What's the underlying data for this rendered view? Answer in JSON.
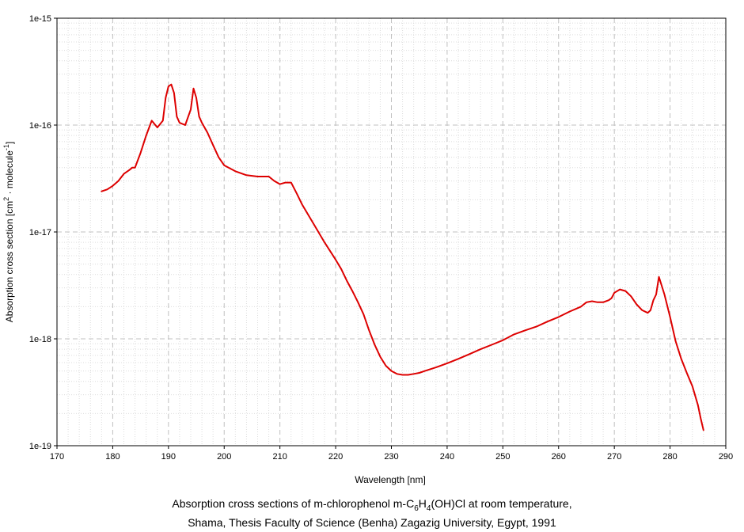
{
  "chart_data": {
    "type": "line",
    "xlabel": "Wavelength [nm]",
    "ylabel_main": "Absorption cross section [cm",
    "ylabel_sup1": "2",
    "ylabel_mid": " · molecule",
    "ylabel_sup2": "-1",
    "ylabel_end": "]",
    "xlim": [
      170,
      290
    ],
    "ylim": [
      1e-19,
      1e-15
    ],
    "yscale": "log",
    "grid": true,
    "x_ticks": [
      170,
      180,
      190,
      200,
      210,
      220,
      230,
      240,
      250,
      260,
      270,
      280,
      290
    ],
    "y_ticks": [
      1e-19,
      1e-18,
      1e-17,
      1e-16,
      1e-15
    ],
    "y_tick_labels": [
      "1e-19",
      "1e-18",
      "1e-17",
      "1e-16",
      "1e-15"
    ],
    "series": [
      {
        "color": "#dd0000",
        "x": [
          178,
          179,
          180,
          181,
          182,
          183,
          183.5,
          184,
          185,
          186,
          187,
          188,
          189,
          189.5,
          190,
          190.5,
          191,
          191.5,
          192,
          193,
          194,
          194.5,
          195,
          195.5,
          196,
          197,
          198,
          199,
          200,
          202,
          204,
          206,
          208,
          209,
          210,
          211,
          212,
          213,
          214,
          216,
          218,
          220,
          221,
          222,
          223,
          224,
          225,
          226,
          227,
          228,
          229,
          230,
          231,
          232,
          233,
          234,
          235,
          236,
          238,
          240,
          242,
          244,
          246,
          248,
          250,
          252,
          254,
          256,
          258,
          260,
          262,
          264,
          265,
          266,
          267,
          268,
          269,
          269.5,
          270,
          271,
          272,
          273,
          274,
          275,
          276,
          276.5,
          277,
          277.5,
          278,
          279,
          280,
          281,
          282,
          283,
          284,
          285,
          285.5,
          286
        ],
        "y": [
          2.4e-17,
          2.5e-17,
          2.7e-17,
          3e-17,
          3.5e-17,
          3.8e-17,
          4e-17,
          4e-17,
          5.5e-17,
          8e-17,
          1.1e-16,
          9.5e-17,
          1.1e-16,
          1.8e-16,
          2.3e-16,
          2.4e-16,
          2e-16,
          1.2e-16,
          1.05e-16,
          1e-16,
          1.4e-16,
          2.2e-16,
          1.8e-16,
          1.2e-16,
          1.05e-16,
          8.5e-17,
          6.5e-17,
          5e-17,
          4.2e-17,
          3.7e-17,
          3.4e-17,
          3.3e-17,
          3.3e-17,
          3e-17,
          2.8e-17,
          2.9e-17,
          2.9e-17,
          2.3e-17,
          1.8e-17,
          1.2e-17,
          8e-18,
          5.5e-18,
          4.5e-18,
          3.5e-18,
          2.8e-18,
          2.2e-18,
          1.7e-18,
          1.2e-18,
          8.8e-19,
          6.8e-19,
          5.6e-19,
          5e-19,
          4.7e-19,
          4.6e-19,
          4.6e-19,
          4.7e-19,
          4.8e-19,
          5e-19,
          5.4e-19,
          5.9e-19,
          6.5e-19,
          7.2e-19,
          8e-19,
          8.8e-19,
          9.7e-19,
          1.1e-18,
          1.2e-18,
          1.3e-18,
          1.45e-18,
          1.6e-18,
          1.8e-18,
          2e-18,
          2.2e-18,
          2.25e-18,
          2.2e-18,
          2.2e-18,
          2.3e-18,
          2.4e-18,
          2.7e-18,
          2.9e-18,
          2.8e-18,
          2.5e-18,
          2.1e-18,
          1.85e-18,
          1.75e-18,
          1.85e-18,
          2.3e-18,
          2.6e-18,
          3.8e-18,
          2.6e-18,
          1.6e-18,
          9.5e-19,
          6.5e-19,
          4.8e-19,
          3.6e-19,
          2.4e-19,
          1.8e-19,
          1.4e-19
        ]
      }
    ]
  },
  "caption": {
    "line1_a": "Absorption cross sections of m-chlorophenol m-C",
    "line1_sub1": "6",
    "line1_b": "H",
    "line1_sub2": "4",
    "line1_c": "(OH)Cl at room temperature,",
    "line2": "Shama, Thesis Faculty of Science (Benha) Zagazig University, Egypt, 1991"
  }
}
